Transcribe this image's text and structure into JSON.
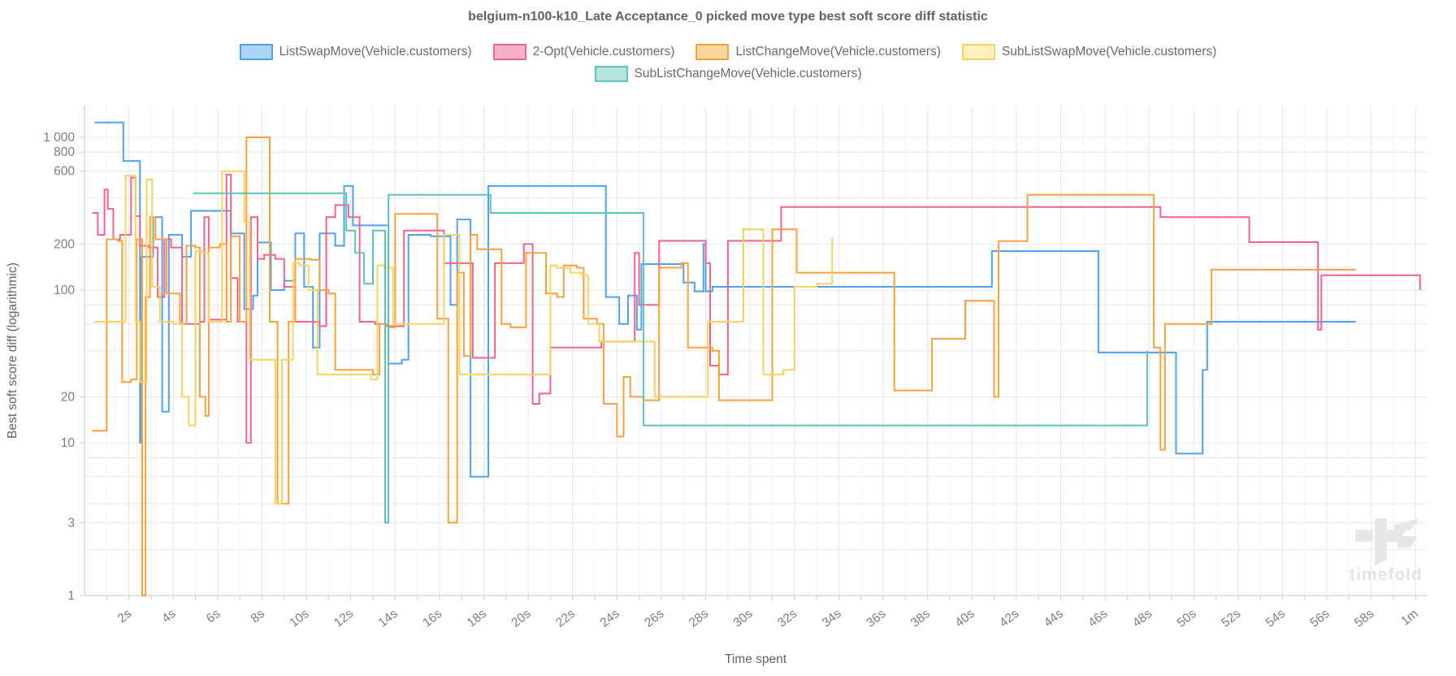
{
  "title": "belgium-n100-k10_Late Acceptance_0 picked move type best soft score diff statistic",
  "watermark_text": "timefold",
  "chart_data": {
    "type": "line",
    "step": true,
    "title": "belgium-n100-k10_Late Acceptance_0 picked move type best soft score diff statistic",
    "xlabel": "Time spent",
    "ylabel": "Best soft score diff (logarithmic)",
    "x_range_seconds": [
      0,
      60.5
    ],
    "y_scale": "logarithmic",
    "y_range": [
      1,
      1600
    ],
    "grid": true,
    "legend_position": "top",
    "x_ticks": [
      {
        "t": 2,
        "label": "2s"
      },
      {
        "t": 4,
        "label": "4s"
      },
      {
        "t": 6,
        "label": "6s"
      },
      {
        "t": 8,
        "label": "8s"
      },
      {
        "t": 10,
        "label": "10s"
      },
      {
        "t": 12,
        "label": "12s"
      },
      {
        "t": 14,
        "label": "14s"
      },
      {
        "t": 16,
        "label": "16s"
      },
      {
        "t": 18,
        "label": "18s"
      },
      {
        "t": 20,
        "label": "20s"
      },
      {
        "t": 22,
        "label": "22s"
      },
      {
        "t": 24,
        "label": "24s"
      },
      {
        "t": 26,
        "label": "26s"
      },
      {
        "t": 28,
        "label": "28s"
      },
      {
        "t": 30,
        "label": "30s"
      },
      {
        "t": 32,
        "label": "32s"
      },
      {
        "t": 34,
        "label": "34s"
      },
      {
        "t": 36,
        "label": "36s"
      },
      {
        "t": 38,
        "label": "38s"
      },
      {
        "t": 40,
        "label": "40s"
      },
      {
        "t": 42,
        "label": "42s"
      },
      {
        "t": 44,
        "label": "44s"
      },
      {
        "t": 46,
        "label": "46s"
      },
      {
        "t": 48,
        "label": "48s"
      },
      {
        "t": 50,
        "label": "50s"
      },
      {
        "t": 52,
        "label": "52s"
      },
      {
        "t": 54,
        "label": "54s"
      },
      {
        "t": 56,
        "label": "56s"
      },
      {
        "t": 58,
        "label": "58s"
      },
      {
        "t": 60,
        "label": "1m"
      }
    ],
    "y_gridline_values": [
      1000,
      800,
      600,
      400,
      200,
      100,
      80,
      60,
      40,
      20,
      10,
      8,
      6,
      4,
      3,
      2,
      1
    ],
    "y_labeled_ticks": [
      {
        "v": 1000,
        "label": "1 000"
      },
      {
        "v": 800,
        "label": "800"
      },
      {
        "v": 600,
        "label": "600"
      },
      {
        "v": 200,
        "label": "200"
      },
      {
        "v": 100,
        "label": "100"
      },
      {
        "v": 20,
        "label": "20"
      },
      {
        "v": 10,
        "label": "10"
      },
      {
        "v": 3,
        "label": "3"
      },
      {
        "v": 1,
        "label": "1"
      }
    ],
    "series": [
      {
        "name": "ListSwapMove(Vehicle.customers)",
        "color": "#4da3f0",
        "legend_fill": "#abd5f7",
        "points": [
          [
            0.45,
            1250
          ],
          [
            1.75,
            700
          ],
          [
            2.5,
            10
          ],
          [
            2.55,
            165
          ],
          [
            3.1,
            300
          ],
          [
            3.5,
            16
          ],
          [
            3.8,
            230
          ],
          [
            4.4,
            165
          ],
          [
            4.8,
            330
          ],
          [
            6.6,
            235
          ],
          [
            7.2,
            75
          ],
          [
            7.6,
            92
          ],
          [
            7.8,
            205
          ],
          [
            8.4,
            100
          ],
          [
            9.0,
            115
          ],
          [
            9.5,
            235
          ],
          [
            9.9,
            105
          ],
          [
            10.3,
            42
          ],
          [
            10.6,
            235
          ],
          [
            11.3,
            195
          ],
          [
            11.7,
            480
          ],
          [
            12.1,
            265
          ],
          [
            13.7,
            33
          ],
          [
            14.3,
            35
          ],
          [
            14.6,
            230
          ],
          [
            15.6,
            225
          ],
          [
            16.5,
            80
          ],
          [
            16.8,
            290
          ],
          [
            17.4,
            6
          ],
          [
            18.2,
            480
          ],
          [
            23.5,
            90
          ],
          [
            24.1,
            60
          ],
          [
            24.5,
            92
          ],
          [
            24.9,
            55
          ],
          [
            25.1,
            148
          ],
          [
            27.0,
            112
          ],
          [
            27.5,
            98
          ],
          [
            27.9,
            200
          ],
          [
            28.0,
            98
          ],
          [
            28.3,
            105
          ],
          [
            40.9,
            180
          ],
          [
            45.7,
            39
          ],
          [
            49.2,
            8.5
          ],
          [
            50.4,
            30
          ],
          [
            50.6,
            62
          ],
          [
            57.3,
            62
          ]
        ]
      },
      {
        "name": "2-Opt(Vehicle.customers)",
        "color": "#f4628f",
        "legend_fill": "#f9b1c7",
        "points": [
          [
            0.35,
            320
          ],
          [
            0.6,
            230
          ],
          [
            0.9,
            455
          ],
          [
            1.05,
            340
          ],
          [
            1.3,
            215
          ],
          [
            1.6,
            230
          ],
          [
            2.1,
            545
          ],
          [
            2.3,
            305
          ],
          [
            2.5,
            195
          ],
          [
            2.9,
            190
          ],
          [
            3.3,
            90
          ],
          [
            3.6,
            215
          ],
          [
            3.9,
            190
          ],
          [
            4.4,
            60
          ],
          [
            5.2,
            62
          ],
          [
            5.4,
            300
          ],
          [
            5.6,
            64
          ],
          [
            6.4,
            570
          ],
          [
            6.6,
            120
          ],
          [
            6.9,
            62
          ],
          [
            7.3,
            10
          ],
          [
            7.5,
            300
          ],
          [
            7.8,
            160
          ],
          [
            8.1,
            170
          ],
          [
            8.6,
            160
          ],
          [
            9.0,
            105
          ],
          [
            9.5,
            62
          ],
          [
            10.6,
            58
          ],
          [
            10.9,
            300
          ],
          [
            11.3,
            360
          ],
          [
            11.9,
            300
          ],
          [
            12.4,
            62
          ],
          [
            13.1,
            60
          ],
          [
            13.6,
            58
          ],
          [
            14.4,
            245
          ],
          [
            16.2,
            150
          ],
          [
            17.5,
            36
          ],
          [
            18.5,
            150
          ],
          [
            19.8,
            200
          ],
          [
            20.2,
            18
          ],
          [
            20.5,
            21
          ],
          [
            21.0,
            42
          ],
          [
            23.3,
            46
          ],
          [
            24.8,
            175
          ],
          [
            25.0,
            80
          ],
          [
            25.9,
            210
          ],
          [
            28.0,
            150
          ],
          [
            28.2,
            32
          ],
          [
            28.6,
            28
          ],
          [
            29.0,
            210
          ],
          [
            31.4,
            350
          ],
          [
            48.5,
            300
          ],
          [
            52.5,
            206
          ],
          [
            55.6,
            55
          ],
          [
            55.75,
            125
          ],
          [
            60.2,
            100
          ]
        ]
      },
      {
        "name": "ListChangeMove(Vehicle.customers)",
        "color": "#f9a13f",
        "legend_fill": "#fcd6a0",
        "points": [
          [
            0.35,
            12
          ],
          [
            1.0,
            215
          ],
          [
            1.5,
            210
          ],
          [
            1.7,
            25
          ],
          [
            2.1,
            26
          ],
          [
            2.35,
            215
          ],
          [
            2.6,
            1
          ],
          [
            2.75,
            90
          ],
          [
            2.95,
            300
          ],
          [
            3.2,
            215
          ],
          [
            3.7,
            95
          ],
          [
            4.3,
            60
          ],
          [
            4.6,
            195
          ],
          [
            5.0,
            190
          ],
          [
            5.2,
            20
          ],
          [
            5.45,
            15
          ],
          [
            5.6,
            190
          ],
          [
            6.1,
            200
          ],
          [
            6.4,
            62
          ],
          [
            6.6,
            225
          ],
          [
            7.0,
            62
          ],
          [
            7.3,
            1000
          ],
          [
            8.35,
            62
          ],
          [
            8.7,
            4
          ],
          [
            9.2,
            62
          ],
          [
            9.5,
            160
          ],
          [
            10.2,
            158
          ],
          [
            10.6,
            100
          ],
          [
            11.0,
            95
          ],
          [
            11.3,
            30
          ],
          [
            13.0,
            28
          ],
          [
            13.3,
            60
          ],
          [
            13.7,
            57
          ],
          [
            14.0,
            315
          ],
          [
            15.9,
            65
          ],
          [
            16.4,
            3
          ],
          [
            16.8,
            130
          ],
          [
            17.1,
            37
          ],
          [
            17.4,
            230
          ],
          [
            17.7,
            185
          ],
          [
            18.8,
            60
          ],
          [
            19.2,
            57
          ],
          [
            19.9,
            175
          ],
          [
            20.8,
            95
          ],
          [
            21.3,
            90
          ],
          [
            21.6,
            145
          ],
          [
            22.2,
            140
          ],
          [
            22.5,
            65
          ],
          [
            23.1,
            60
          ],
          [
            23.4,
            18
          ],
          [
            24.0,
            11
          ],
          [
            24.3,
            27
          ],
          [
            24.6,
            20
          ],
          [
            25.2,
            19
          ],
          [
            25.9,
            140
          ],
          [
            26.9,
            150
          ],
          [
            27.2,
            42
          ],
          [
            28.3,
            40
          ],
          [
            28.6,
            19
          ],
          [
            31.0,
            250
          ],
          [
            32.1,
            130
          ],
          [
            36.5,
            22
          ],
          [
            38.2,
            48
          ],
          [
            39.7,
            85
          ],
          [
            41.0,
            20
          ],
          [
            41.2,
            209
          ],
          [
            42.5,
            420
          ],
          [
            48.2,
            42
          ],
          [
            48.5,
            9
          ],
          [
            48.7,
            60
          ],
          [
            50.8,
            136
          ],
          [
            57.3,
            136
          ]
        ]
      },
      {
        "name": "SubListSwapMove(Vehicle.customers)",
        "color": "#f7d45e",
        "legend_fill": "#fdf0bb",
        "points": [
          [
            0.45,
            62
          ],
          [
            1.85,
            560
          ],
          [
            2.3,
            62
          ],
          [
            2.5,
            25
          ],
          [
            2.8,
            530
          ],
          [
            3.05,
            105
          ],
          [
            3.4,
            62
          ],
          [
            4.0,
            60
          ],
          [
            4.4,
            20
          ],
          [
            4.7,
            13
          ],
          [
            5.0,
            180
          ],
          [
            5.3,
            175
          ],
          [
            5.6,
            62
          ],
          [
            6.2,
            600
          ],
          [
            7.2,
            280
          ],
          [
            7.45,
            35
          ],
          [
            8.6,
            4
          ],
          [
            8.9,
            35
          ],
          [
            9.4,
            150
          ],
          [
            9.7,
            145
          ],
          [
            10.1,
            100
          ],
          [
            10.5,
            28
          ],
          [
            12.9,
            26
          ],
          [
            13.2,
            145
          ],
          [
            13.5,
            140
          ],
          [
            13.9,
            60
          ],
          [
            16.2,
            230
          ],
          [
            16.9,
            28
          ],
          [
            21.0,
            145
          ],
          [
            21.3,
            140
          ],
          [
            21.9,
            130
          ],
          [
            22.4,
            125
          ],
          [
            22.7,
            60
          ],
          [
            23.2,
            46
          ],
          [
            25.7,
            20
          ],
          [
            28.1,
            62
          ],
          [
            29.7,
            250
          ],
          [
            30.6,
            28
          ],
          [
            31.5,
            30
          ],
          [
            32.0,
            105
          ],
          [
            33.0,
            110
          ],
          [
            33.7,
            220
          ]
        ]
      },
      {
        "name": "SubListChangeMove(Vehicle.customers)",
        "color": "#5fc4b8",
        "legend_fill": "#b6e4dd",
        "points": [
          [
            4.9,
            430
          ],
          [
            11.8,
            245
          ],
          [
            12.2,
            175
          ],
          [
            12.6,
            110
          ],
          [
            13.0,
            245
          ],
          [
            13.55,
            3
          ],
          [
            13.7,
            420
          ],
          [
            18.3,
            320
          ],
          [
            25.2,
            13
          ],
          [
            47.9,
            40
          ]
        ]
      }
    ]
  }
}
